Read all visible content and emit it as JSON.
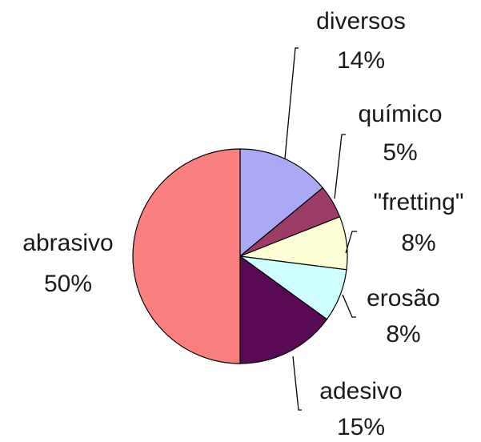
{
  "chart_data": {
    "type": "pie",
    "slices": [
      {
        "label": "diversos",
        "value": 14,
        "value_label": "14%",
        "color": "#a9a9f5"
      },
      {
        "label": "químico",
        "value": 5,
        "value_label": "5%",
        "color": "#9e3b66"
      },
      {
        "label": "\"fretting\"",
        "value": 8,
        "value_label": "8%",
        "color": "#ffffd6"
      },
      {
        "label": "erosão",
        "value": 8,
        "value_label": "8%",
        "color": "#ceffff"
      },
      {
        "label": "adesivo",
        "value": 15,
        "value_label": "15%",
        "color": "#5a0a55"
      },
      {
        "label": "abrasivo",
        "value": 50,
        "value_label": "50%",
        "color": "#fa8080"
      }
    ],
    "start_angle_deg": 0,
    "direction": "clockwise",
    "label_position": "outside, with leader lines"
  }
}
